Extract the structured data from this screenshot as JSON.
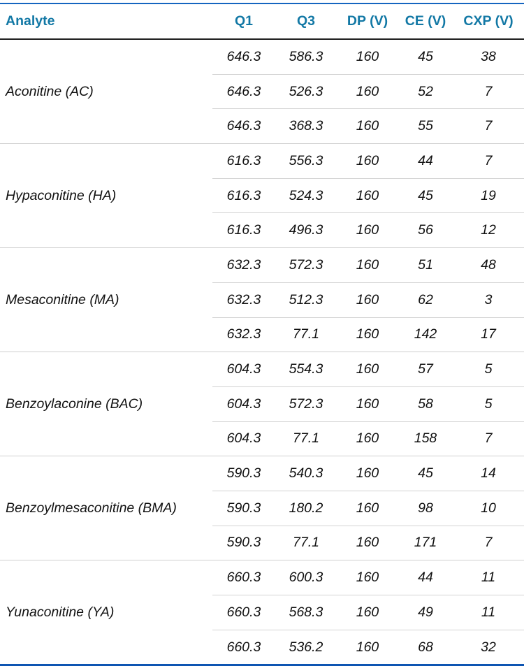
{
  "table": {
    "columns": [
      "Analyte",
      "Q1",
      "Q3",
      "DP (V)",
      "CE (V)",
      "CXP (V)"
    ],
    "groups": [
      {
        "analyte": "Aconitine (AC)",
        "rows": [
          [
            "646.3",
            "586.3",
            "160",
            "45",
            "38"
          ],
          [
            "646.3",
            "526.3",
            "160",
            "52",
            "7"
          ],
          [
            "646.3",
            "368.3",
            "160",
            "55",
            "7"
          ]
        ]
      },
      {
        "analyte": "Hypaconitine (HA)",
        "rows": [
          [
            "616.3",
            "556.3",
            "160",
            "44",
            "7"
          ],
          [
            "616.3",
            "524.3",
            "160",
            "45",
            "19"
          ],
          [
            "616.3",
            "496.3",
            "160",
            "56",
            "12"
          ]
        ]
      },
      {
        "analyte": "Mesaconitine (MA)",
        "rows": [
          [
            "632.3",
            "572.3",
            "160",
            "51",
            "48"
          ],
          [
            "632.3",
            "512.3",
            "160",
            "62",
            "3"
          ],
          [
            "632.3",
            "77.1",
            "160",
            "142",
            "17"
          ]
        ]
      },
      {
        "analyte": "Benzoylaconine (BAC)",
        "rows": [
          [
            "604.3",
            "554.3",
            "160",
            "57",
            "5"
          ],
          [
            "604.3",
            "572.3",
            "160",
            "58",
            "5"
          ],
          [
            "604.3",
            "77.1",
            "160",
            "158",
            "7"
          ]
        ]
      },
      {
        "analyte": "Benzoylmesaconitine (BMA)",
        "rows": [
          [
            "590.3",
            "540.3",
            "160",
            "45",
            "14"
          ],
          [
            "590.3",
            "180.2",
            "160",
            "98",
            "10"
          ],
          [
            "590.3",
            "77.1",
            "160",
            "171",
            "7"
          ]
        ]
      },
      {
        "analyte": "Yunaconitine (YA)",
        "rows": [
          [
            "660.3",
            "600.3",
            "160",
            "44",
            "11"
          ],
          [
            "660.3",
            "568.3",
            "160",
            "49",
            "11"
          ],
          [
            "660.3",
            "536.2",
            "160",
            "68",
            "32"
          ]
        ]
      }
    ],
    "colors": {
      "header_text": "#1278a5",
      "top_border": "#1565c0",
      "bottom_border": "#0e55b2",
      "header_rule": "#1f1f1f",
      "row_rule": "#cfcfcf"
    }
  }
}
